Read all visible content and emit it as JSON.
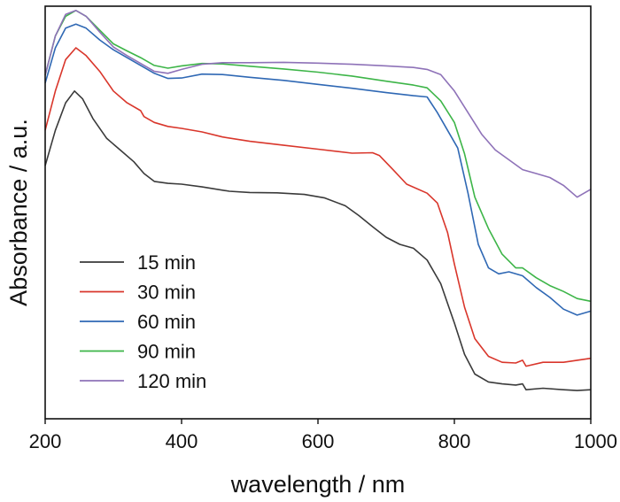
{
  "chart_data": {
    "type": "line",
    "xlabel": "wavelength / nm",
    "ylabel": "Absorbance / a.u.",
    "xlim": [
      200,
      1000
    ],
    "ylim": [
      0,
      1
    ],
    "x_ticks": [
      200,
      400,
      600,
      800,
      1000
    ],
    "y_ticks_shown": false,
    "grid": false,
    "legend_position": "bottom-left",
    "series": [
      {
        "name": "15 min",
        "color": "#3a3a3a",
        "points": [
          [
            200,
            0.61
          ],
          [
            215,
            0.7
          ],
          [
            230,
            0.77
          ],
          [
            243,
            0.8
          ],
          [
            255,
            0.78
          ],
          [
            270,
            0.73
          ],
          [
            290,
            0.68
          ],
          [
            310,
            0.65
          ],
          [
            330,
            0.62
          ],
          [
            345,
            0.59
          ],
          [
            360,
            0.57
          ],
          [
            380,
            0.565
          ],
          [
            400,
            0.563
          ],
          [
            430,
            0.556
          ],
          [
            470,
            0.545
          ],
          [
            500,
            0.542
          ],
          [
            540,
            0.541
          ],
          [
            580,
            0.537
          ],
          [
            610,
            0.528
          ],
          [
            640,
            0.508
          ],
          [
            660,
            0.483
          ],
          [
            680,
            0.455
          ],
          [
            700,
            0.428
          ],
          [
            720,
            0.41
          ],
          [
            740,
            0.4
          ],
          [
            760,
            0.37
          ],
          [
            780,
            0.31
          ],
          [
            800,
            0.21
          ],
          [
            815,
            0.13
          ],
          [
            830,
            0.08
          ],
          [
            850,
            0.06
          ],
          [
            870,
            0.055
          ],
          [
            890,
            0.052
          ],
          [
            900,
            0.055
          ],
          [
            905,
            0.04
          ],
          [
            930,
            0.044
          ],
          [
            960,
            0.04
          ],
          [
            980,
            0.038
          ],
          [
            1000,
            0.04
          ]
        ]
      },
      {
        "name": "30 min",
        "color": "#d9362b",
        "points": [
          [
            200,
            0.7
          ],
          [
            215,
            0.8
          ],
          [
            230,
            0.88
          ],
          [
            245,
            0.91
          ],
          [
            260,
            0.89
          ],
          [
            280,
            0.85
          ],
          [
            300,
            0.8
          ],
          [
            320,
            0.77
          ],
          [
            340,
            0.75
          ],
          [
            345,
            0.735
          ],
          [
            360,
            0.72
          ],
          [
            380,
            0.71
          ],
          [
            400,
            0.705
          ],
          [
            430,
            0.696
          ],
          [
            460,
            0.683
          ],
          [
            500,
            0.672
          ],
          [
            550,
            0.662
          ],
          [
            600,
            0.652
          ],
          [
            650,
            0.642
          ],
          [
            680,
            0.643
          ],
          [
            690,
            0.636
          ],
          [
            710,
            0.6
          ],
          [
            730,
            0.563
          ],
          [
            760,
            0.54
          ],
          [
            775,
            0.515
          ],
          [
            790,
            0.44
          ],
          [
            800,
            0.36
          ],
          [
            815,
            0.25
          ],
          [
            830,
            0.17
          ],
          [
            850,
            0.125
          ],
          [
            870,
            0.11
          ],
          [
            890,
            0.108
          ],
          [
            900,
            0.115
          ],
          [
            905,
            0.1
          ],
          [
            930,
            0.11
          ],
          [
            960,
            0.11
          ],
          [
            980,
            0.115
          ],
          [
            1000,
            0.12
          ]
        ]
      },
      {
        "name": "60 min",
        "color": "#2f68b4",
        "points": [
          [
            200,
            0.82
          ],
          [
            215,
            0.91
          ],
          [
            230,
            0.96
          ],
          [
            245,
            0.97
          ],
          [
            260,
            0.96
          ],
          [
            280,
            0.93
          ],
          [
            300,
            0.905
          ],
          [
            320,
            0.885
          ],
          [
            340,
            0.865
          ],
          [
            360,
            0.845
          ],
          [
            380,
            0.832
          ],
          [
            400,
            0.833
          ],
          [
            430,
            0.843
          ],
          [
            460,
            0.842
          ],
          [
            500,
            0.835
          ],
          [
            550,
            0.827
          ],
          [
            600,
            0.817
          ],
          [
            650,
            0.807
          ],
          [
            700,
            0.796
          ],
          [
            740,
            0.788
          ],
          [
            760,
            0.785
          ],
          [
            775,
            0.745
          ],
          [
            790,
            0.7
          ],
          [
            805,
            0.655
          ],
          [
            820,
            0.54
          ],
          [
            835,
            0.41
          ],
          [
            850,
            0.35
          ],
          [
            865,
            0.335
          ],
          [
            880,
            0.34
          ],
          [
            900,
            0.33
          ],
          [
            920,
            0.3
          ],
          [
            940,
            0.275
          ],
          [
            960,
            0.245
          ],
          [
            980,
            0.23
          ],
          [
            1000,
            0.24
          ]
        ]
      },
      {
        "name": "90 min",
        "color": "#3db548",
        "points": [
          [
            200,
            0.84
          ],
          [
            215,
            0.94
          ],
          [
            230,
            0.99
          ],
          [
            245,
            1.005
          ],
          [
            260,
            0.99
          ],
          [
            280,
            0.955
          ],
          [
            300,
            0.92
          ],
          [
            320,
            0.902
          ],
          [
            340,
            0.885
          ],
          [
            360,
            0.865
          ],
          [
            380,
            0.858
          ],
          [
            400,
            0.864
          ],
          [
            430,
            0.87
          ],
          [
            460,
            0.869
          ],
          [
            500,
            0.863
          ],
          [
            550,
            0.856
          ],
          [
            600,
            0.848
          ],
          [
            650,
            0.838
          ],
          [
            700,
            0.825
          ],
          [
            740,
            0.815
          ],
          [
            760,
            0.808
          ],
          [
            780,
            0.775
          ],
          [
            800,
            0.72
          ],
          [
            815,
            0.64
          ],
          [
            830,
            0.53
          ],
          [
            850,
            0.45
          ],
          [
            870,
            0.385
          ],
          [
            890,
            0.35
          ],
          [
            900,
            0.35
          ],
          [
            920,
            0.325
          ],
          [
            940,
            0.305
          ],
          [
            960,
            0.29
          ],
          [
            980,
            0.272
          ],
          [
            1000,
            0.265
          ]
        ]
      },
      {
        "name": "120 min",
        "color": "#8e72b8",
        "points": [
          [
            200,
            0.84
          ],
          [
            215,
            0.94
          ],
          [
            230,
            0.995
          ],
          [
            245,
            1.005
          ],
          [
            260,
            0.99
          ],
          [
            280,
            0.95
          ],
          [
            300,
            0.912
          ],
          [
            320,
            0.89
          ],
          [
            340,
            0.87
          ],
          [
            360,
            0.85
          ],
          [
            380,
            0.845
          ],
          [
            400,
            0.855
          ],
          [
            430,
            0.868
          ],
          [
            460,
            0.872
          ],
          [
            500,
            0.872
          ],
          [
            550,
            0.873
          ],
          [
            600,
            0.871
          ],
          [
            650,
            0.868
          ],
          [
            700,
            0.864
          ],
          [
            740,
            0.86
          ],
          [
            760,
            0.855
          ],
          [
            780,
            0.842
          ],
          [
            800,
            0.8
          ],
          [
            820,
            0.745
          ],
          [
            840,
            0.69
          ],
          [
            860,
            0.65
          ],
          [
            880,
            0.625
          ],
          [
            900,
            0.6
          ],
          [
            920,
            0.59
          ],
          [
            940,
            0.58
          ],
          [
            960,
            0.56
          ],
          [
            980,
            0.53
          ],
          [
            1000,
            0.55
          ]
        ]
      }
    ]
  }
}
